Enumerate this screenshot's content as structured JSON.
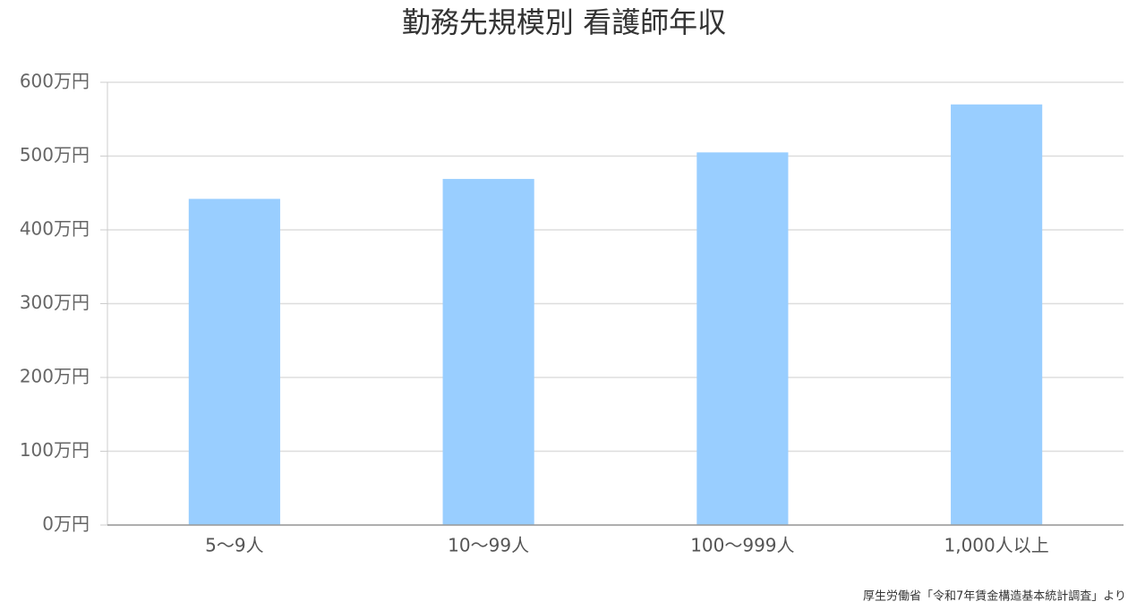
{
  "chart_data": {
    "type": "bar",
    "title": "勤務先規模別 看護師年収",
    "categories": [
      "5〜9人",
      "10〜99人",
      "100〜999人",
      "1,000人以上"
    ],
    "values": [
      442,
      469,
      505,
      570
    ],
    "color": "#99ceff",
    "ylim": [
      0,
      600
    ],
    "yticks": [
      {
        "value": 0,
        "label": "0万円"
      },
      {
        "value": 100,
        "label": "100万円"
      },
      {
        "value": 200,
        "label": "200万円"
      },
      {
        "value": 300,
        "label": "300万円"
      },
      {
        "value": 400,
        "label": "400万円"
      },
      {
        "value": 500,
        "label": "500万円"
      },
      {
        "value": 600,
        "label": "600万円"
      }
    ],
    "grid": true,
    "source": "厚生労働省「令和7年賃金構造基本統計調査」より"
  }
}
